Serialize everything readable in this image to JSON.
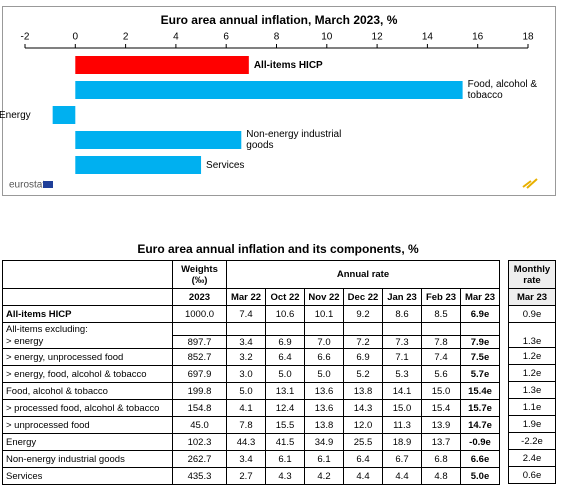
{
  "chart_data": {
    "type": "bar",
    "orientation": "horizontal",
    "title": "Euro area annual inflation, March 2023, %",
    "categories": [
      "All-items HICP",
      "Food, alcohol & tobacco",
      "Energy",
      "Non-energy industrial goods",
      "Services"
    ],
    "values": [
      6.9,
      15.4,
      -0.9,
      6.6,
      5.0
    ],
    "colors": [
      "#ff0000",
      "#00b0f0",
      "#00b0f0",
      "#00b0f0",
      "#00b0f0"
    ],
    "xlim": [
      -2,
      18
    ],
    "xticks": [
      -2,
      0,
      2,
      4,
      6,
      8,
      10,
      12,
      14,
      16,
      18
    ],
    "source": "eurostat"
  },
  "table": {
    "title": "Euro area annual inflation and its components, %",
    "header": {
      "weights": "Weights (‰)",
      "weights_year": "2023",
      "annual_rate": "Annual rate",
      "periods": [
        "Mar 22",
        "Oct 22",
        "Nov 22",
        "Dec 22",
        "Jan 23",
        "Feb 23",
        "Mar 23"
      ],
      "monthly_rate": "Monthly rate",
      "monthly_period": "Mar 23"
    },
    "rows": [
      {
        "label": "All-items HICP",
        "weight": "1000.0",
        "annual": [
          "7.4",
          "10.6",
          "10.1",
          "9.2",
          "8.6",
          "8.5",
          "6.9e"
        ],
        "monthly": "0.9e"
      },
      {
        "label": "All-items excluding:"
      },
      {
        "label": "> energy",
        "weight": "897.7",
        "annual": [
          "3.4",
          "6.9",
          "7.0",
          "7.2",
          "7.3",
          "7.8",
          "7.9e"
        ],
        "monthly": "1.3e"
      },
      {
        "label": "> energy, unprocessed food",
        "weight": "852.7",
        "annual": [
          "3.2",
          "6.4",
          "6.6",
          "6.9",
          "7.1",
          "7.4",
          "7.5e"
        ],
        "monthly": "1.2e"
      },
      {
        "label": "> energy, food, alcohol & tobacco",
        "weight": "697.9",
        "annual": [
          "3.0",
          "5.0",
          "5.0",
          "5.2",
          "5.3",
          "5.6",
          "5.7e"
        ],
        "monthly": "1.2e"
      },
      {
        "label": "Food, alcohol & tobacco",
        "weight": "199.8",
        "annual": [
          "5.0",
          "13.1",
          "13.6",
          "13.8",
          "14.1",
          "15.0",
          "15.4e"
        ],
        "monthly": "1.3e"
      },
      {
        "label": "> processed food, alcohol & tobacco",
        "weight": "154.8",
        "annual": [
          "4.1",
          "12.4",
          "13.6",
          "14.3",
          "15.0",
          "15.4",
          "15.7e"
        ],
        "monthly": "1.1e"
      },
      {
        "label": "> unprocessed food",
        "weight": "45.0",
        "annual": [
          "7.8",
          "15.5",
          "13.8",
          "12.0",
          "11.3",
          "13.9",
          "14.7e"
        ],
        "monthly": "1.9e"
      },
      {
        "label": "Energy",
        "weight": "102.3",
        "annual": [
          "44.3",
          "41.5",
          "34.9",
          "25.5",
          "18.9",
          "13.7",
          "-0.9e"
        ],
        "monthly": "-2.2e"
      },
      {
        "label": "Non-energy industrial goods",
        "weight": "262.7",
        "annual": [
          "3.4",
          "6.1",
          "6.1",
          "6.4",
          "6.7",
          "6.8",
          "6.6e"
        ],
        "monthly": "2.4e"
      },
      {
        "label": "Services",
        "weight": "435.3",
        "annual": [
          "2.7",
          "4.3",
          "4.2",
          "4.4",
          "4.4",
          "4.8",
          "5.0e"
        ],
        "monthly": "0.6e"
      }
    ]
  }
}
